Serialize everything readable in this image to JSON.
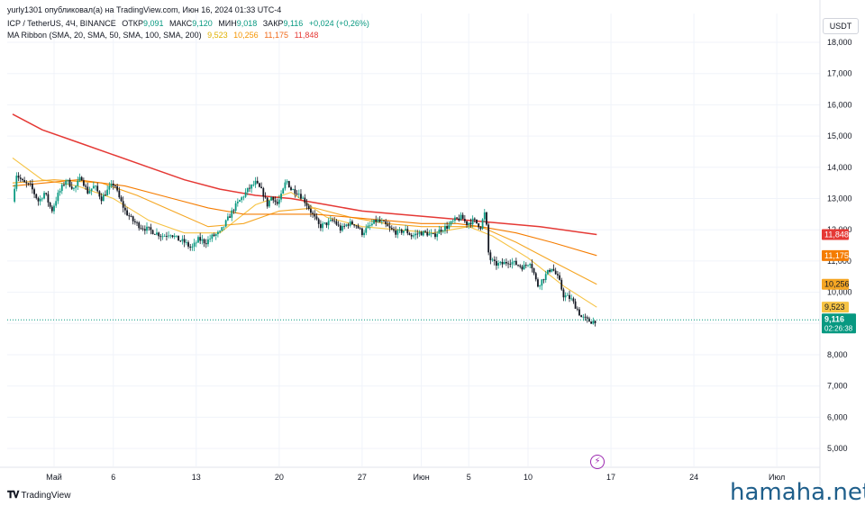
{
  "header": {
    "credit": "yurly1301 опубликовал(а) на TradingView.com, Июн 16, 2024 01:33 UTC-4",
    "symbol": "ICP / TetherUS, 4Ч, BINANCE",
    "ohlc": [
      {
        "label": "ОТКР",
        "value": "9,091"
      },
      {
        "label": "МАКС",
        "value": "9,120"
      },
      {
        "label": "МИН",
        "value": "9,018"
      },
      {
        "label": "ЗАКР",
        "value": "9,116"
      }
    ],
    "change": "+0,024 (+0,26%)",
    "indicator": "MA Ribbon (SMA, 20, SMA, 50, SMA, 100, SMA, 200)",
    "ma_values": [
      {
        "value": "9,523",
        "color": "#e0b000"
      },
      {
        "value": "10,256",
        "color": "#f59400"
      },
      {
        "value": "11,175",
        "color": "#f06a1a"
      },
      {
        "value": "11,848",
        "color": "#e53935"
      }
    ]
  },
  "currency": "USDT",
  "footer": {
    "logo_text": "TradingView",
    "watermark": "hamaha.net"
  },
  "colors": {
    "up": "#089981",
    "down": "#131722",
    "grid": "#f0f3fa",
    "ma20": "#f6c344",
    "ma50": "#f5a623",
    "ma100": "#f57c00",
    "ma200": "#e53935",
    "price": "#089981"
  },
  "chart_data": {
    "type": "candlestick",
    "ylim": [
      4.5,
      18.5
    ],
    "y_ticks": [
      "5,000",
      "6,000",
      "7,000",
      "8,000",
      "9,000",
      "10,000",
      "11,000",
      "12,000",
      "13,000",
      "14,000",
      "15,000",
      "16,000",
      "17,000",
      "18,000"
    ],
    "x_ticks": [
      {
        "label": "Май",
        "day": 1
      },
      {
        "label": "6",
        "day": 6
      },
      {
        "label": "13",
        "day": 13
      },
      {
        "label": "20",
        "day": 20
      },
      {
        "label": "27",
        "day": 27
      },
      {
        "label": "Июн",
        "day": 32
      },
      {
        "label": "5",
        "day": 36
      },
      {
        "label": "10",
        "day": 41
      },
      {
        "label": "17",
        "day": 48
      },
      {
        "label": "24",
        "day": 55
      },
      {
        "label": "Июл",
        "day": 62
      }
    ],
    "price_path": [
      [
        -2.5,
        12.9
      ],
      [
        -2.2,
        13.8
      ],
      [
        -1.6,
        13.5
      ],
      [
        -1,
        13.4
      ],
      [
        -0.3,
        12.9
      ],
      [
        0.2,
        13.2
      ],
      [
        0.8,
        12.6
      ],
      [
        1.3,
        13.1
      ],
      [
        2,
        13.6
      ],
      [
        2.7,
        13.3
      ],
      [
        3.3,
        13.7
      ],
      [
        3.8,
        13.2
      ],
      [
        4.4,
        13.4
      ],
      [
        5,
        13.0
      ],
      [
        5.6,
        13.3
      ],
      [
        6.1,
        13.5
      ],
      [
        6.4,
        13.1
      ],
      [
        7,
        12.6
      ],
      [
        7.6,
        12.3
      ],
      [
        8.3,
        12.1
      ],
      [
        9,
        12.0
      ],
      [
        9.6,
        11.9
      ],
      [
        10.2,
        11.8
      ],
      [
        10.8,
        11.9
      ],
      [
        11.4,
        11.7
      ],
      [
        12,
        11.6
      ],
      [
        12.6,
        11.4
      ],
      [
        13.2,
        11.7
      ],
      [
        13.8,
        11.6
      ],
      [
        14.4,
        11.8
      ],
      [
        15,
        11.9
      ],
      [
        15.6,
        12.3
      ],
      [
        16.2,
        12.7
      ],
      [
        16.8,
        13.0
      ],
      [
        17.4,
        13.3
      ],
      [
        18,
        13.5
      ],
      [
        18.6,
        13.2
      ],
      [
        19,
        12.8
      ],
      [
        19.4,
        13.1
      ],
      [
        19.8,
        12.8
      ],
      [
        20.2,
        13.1
      ],
      [
        20.6,
        13.6
      ],
      [
        21,
        13.3
      ],
      [
        21.6,
        13.2
      ],
      [
        22.2,
        12.9
      ],
      [
        22.8,
        12.5
      ],
      [
        23.4,
        12.1
      ],
      [
        24,
        12.2
      ],
      [
        24.6,
        12.3
      ],
      [
        25.2,
        12.0
      ],
      [
        25.8,
        12.2
      ],
      [
        26.4,
        12.2
      ],
      [
        27,
        11.9
      ],
      [
        27.6,
        12.1
      ],
      [
        28.2,
        12.3
      ],
      [
        28.8,
        12.2
      ],
      [
        29.4,
        12.0
      ],
      [
        30,
        11.9
      ],
      [
        30.6,
        12.0
      ],
      [
        31.2,
        11.8
      ],
      [
        31.8,
        11.9
      ],
      [
        32.4,
        11.9
      ],
      [
        33,
        11.8
      ],
      [
        33.6,
        12.0
      ],
      [
        34.2,
        12.1
      ],
      [
        34.8,
        12.3
      ],
      [
        35.4,
        12.4
      ],
      [
        35.8,
        12.2
      ],
      [
        36.4,
        12.3
      ],
      [
        37,
        12.1
      ],
      [
        37.4,
        12.6
      ],
      [
        37.7,
        11.1
      ],
      [
        38.2,
        10.9
      ],
      [
        38.8,
        10.9
      ],
      [
        39.4,
        11.0
      ],
      [
        40,
        10.9
      ],
      [
        40.6,
        10.8
      ],
      [
        41.2,
        11.0
      ],
      [
        41.8,
        10.2
      ],
      [
        42.4,
        10.5
      ],
      [
        43,
        10.8
      ],
      [
        43.6,
        10.4
      ],
      [
        44,
        9.9
      ],
      [
        44.6,
        9.8
      ],
      [
        45.1,
        9.5
      ],
      [
        45.5,
        9.2
      ],
      [
        46,
        9.1
      ],
      [
        46.4,
        9.06
      ],
      [
        46.8,
        9.116
      ]
    ],
    "series": [
      {
        "name": "SMA 20",
        "final": 9.523,
        "points": [
          [
            -2.5,
            14.3
          ],
          [
            0,
            13.6
          ],
          [
            3,
            13.4
          ],
          [
            6,
            13.0
          ],
          [
            9,
            12.3
          ],
          [
            12,
            11.9
          ],
          [
            15,
            11.9
          ],
          [
            18,
            12.8
          ],
          [
            21,
            13.2
          ],
          [
            24,
            12.4
          ],
          [
            27,
            12.1
          ],
          [
            30,
            12.0
          ],
          [
            33,
            11.9
          ],
          [
            36,
            12.1
          ],
          [
            38,
            11.8
          ],
          [
            41,
            11.1
          ],
          [
            44,
            10.2
          ],
          [
            46.8,
            9.523
          ]
        ]
      },
      {
        "name": "SMA 50",
        "final": 10.256,
        "points": [
          [
            -2.5,
            13.5
          ],
          [
            1,
            13.6
          ],
          [
            5,
            13.5
          ],
          [
            8,
            13.1
          ],
          [
            11,
            12.6
          ],
          [
            14,
            12.1
          ],
          [
            17,
            12.2
          ],
          [
            20,
            12.6
          ],
          [
            23,
            12.7
          ],
          [
            26,
            12.4
          ],
          [
            29,
            12.2
          ],
          [
            32,
            12.1
          ],
          [
            35,
            12.1
          ],
          [
            37,
            12.1
          ],
          [
            40,
            11.6
          ],
          [
            43,
            11.0
          ],
          [
            46.8,
            10.256
          ]
        ]
      },
      {
        "name": "SMA 100",
        "final": 11.175,
        "points": [
          [
            -2.5,
            13.4
          ],
          [
            3,
            13.6
          ],
          [
            7,
            13.4
          ],
          [
            11,
            13.0
          ],
          [
            14,
            12.7
          ],
          [
            17,
            12.5
          ],
          [
            20,
            12.5
          ],
          [
            23,
            12.5
          ],
          [
            26,
            12.4
          ],
          [
            29,
            12.3
          ],
          [
            32,
            12.2
          ],
          [
            35,
            12.2
          ],
          [
            37,
            12.1
          ],
          [
            40,
            11.9
          ],
          [
            43,
            11.6
          ],
          [
            46.8,
            11.175
          ]
        ]
      },
      {
        "name": "SMA 200",
        "final": 11.848,
        "points": [
          [
            -2.5,
            15.7
          ],
          [
            0,
            15.2
          ],
          [
            3,
            14.8
          ],
          [
            6,
            14.4
          ],
          [
            9,
            14.0
          ],
          [
            12,
            13.6
          ],
          [
            15,
            13.3
          ],
          [
            18,
            13.1
          ],
          [
            21,
            13.0
          ],
          [
            24,
            12.8
          ],
          [
            27,
            12.6
          ],
          [
            30,
            12.5
          ],
          [
            33,
            12.4
          ],
          [
            36,
            12.3
          ],
          [
            39,
            12.2
          ],
          [
            42,
            12.1
          ],
          [
            46.8,
            11.848
          ]
        ]
      }
    ],
    "last_price": {
      "value": 9.116,
      "label": "9,116",
      "countdown": "02:26:38"
    },
    "ma_labels": [
      "11,848",
      "11,175",
      "10,256",
      "9,523"
    ]
  }
}
